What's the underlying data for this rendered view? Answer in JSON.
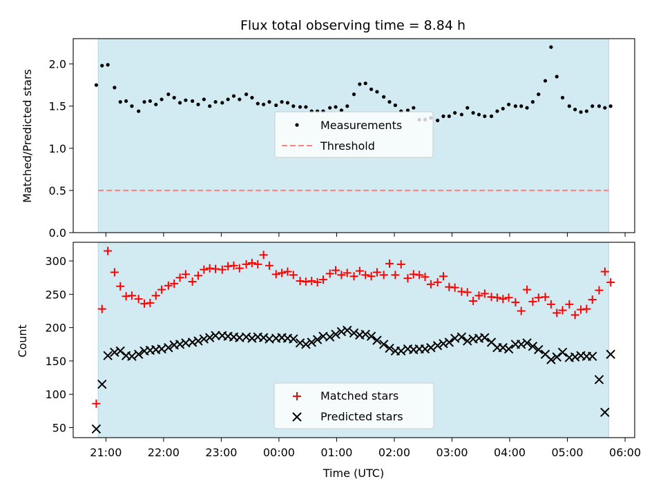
{
  "title": "Flux total observing time = 8.84 h",
  "colors": {
    "observing_band": "#add8e6",
    "threshold": "#ff7f7f",
    "matched": "#ff0000",
    "predicted": "#000000",
    "measurement": "#000000"
  },
  "chart_data": [
    {
      "type": "scatter",
      "ylabel": "Matched/Predicted stars",
      "ylim": [
        0,
        2.3
      ],
      "y_ticks": [
        0.0,
        0.5,
        1.0,
        1.5,
        2.0
      ],
      "y_tick_labels": [
        "0.0",
        "0.5",
        "1.0",
        "1.5",
        "2.0"
      ],
      "x_shared": "bottom",
      "grid": false,
      "legend_position": "center",
      "observing_window": [
        "20:52",
        "05:43"
      ],
      "series": [
        {
          "name": "Measurements",
          "marker": "dot",
          "x": [
            "20:50",
            "20:56",
            "21:02",
            "21:09",
            "21:15",
            "21:21",
            "21:27",
            "21:34",
            "21:40",
            "21:46",
            "21:52",
            "21:58",
            "22:05",
            "22:11",
            "22:17",
            "22:23",
            "22:30",
            "22:36",
            "22:42",
            "22:48",
            "22:54",
            "23:01",
            "23:07",
            "23:13",
            "23:19",
            "23:26",
            "23:32",
            "23:38",
            "23:44",
            "23:50",
            "23:57",
            "00:03",
            "00:09",
            "00:15",
            "00:22",
            "00:28",
            "00:34",
            "00:40",
            "00:46",
            "00:53",
            "00:59",
            "01:05",
            "01:11",
            "01:18",
            "01:24",
            "01:30",
            "01:36",
            "01:42",
            "01:49",
            "01:55",
            "02:01",
            "02:07",
            "02:14",
            "02:20",
            "02:26",
            "02:32",
            "02:38",
            "02:45",
            "02:51",
            "02:57",
            "03:03",
            "03:10",
            "03:16",
            "03:22",
            "03:28",
            "03:34",
            "03:41",
            "03:47",
            "03:53",
            "03:59",
            "04:06",
            "04:12",
            "04:18",
            "04:24",
            "04:30",
            "04:37",
            "04:43",
            "04:49",
            "04:55",
            "05:02",
            "05:08",
            "05:14",
            "05:20",
            "05:26",
            "05:33",
            "05:39",
            "05:45"
          ],
          "y": [
            1.75,
            1.98,
            1.99,
            1.72,
            1.55,
            1.56,
            1.5,
            1.44,
            1.55,
            1.56,
            1.52,
            1.58,
            1.64,
            1.6,
            1.54,
            1.57,
            1.56,
            1.52,
            1.58,
            1.5,
            1.55,
            1.54,
            1.58,
            1.62,
            1.58,
            1.64,
            1.6,
            1.53,
            1.52,
            1.55,
            1.51,
            1.55,
            1.54,
            1.5,
            1.49,
            1.49,
            1.44,
            1.44,
            1.44,
            1.48,
            1.49,
            1.45,
            1.5,
            1.64,
            1.76,
            1.77,
            1.7,
            1.67,
            1.61,
            1.55,
            1.51,
            1.44,
            1.45,
            1.48,
            1.34,
            1.34,
            1.36,
            1.33,
            1.38,
            1.38,
            1.42,
            1.4,
            1.48,
            1.42,
            1.4,
            1.38,
            1.38,
            1.44,
            1.47,
            1.52,
            1.5,
            1.5,
            1.48,
            1.55,
            1.64,
            1.8,
            2.2,
            1.85,
            1.6,
            1.5,
            1.46,
            1.43,
            1.44,
            1.5,
            1.5,
            1.48,
            1.5
          ]
        },
        {
          "name": "Threshold",
          "line_style": "dashed",
          "x": [
            "20:52",
            "05:43"
          ],
          "y": [
            0.5,
            0.5
          ]
        }
      ]
    },
    {
      "type": "scatter",
      "xlabel": "Time (UTC)",
      "ylabel": "Count",
      "ylim": [
        35,
        328
      ],
      "y_ticks": [
        50,
        100,
        150,
        200,
        250,
        300
      ],
      "y_tick_labels": [
        "50",
        "100",
        "150",
        "200",
        "250",
        "300"
      ],
      "x_ticks": [
        "21:00",
        "22:00",
        "23:00",
        "00:00",
        "01:00",
        "02:00",
        "03:00",
        "04:00",
        "05:00",
        "06:00"
      ],
      "x_tick_labels": [
        "21:00",
        "22:00",
        "23:00",
        "00:00",
        "01:00",
        "02:00",
        "03:00",
        "04:00",
        "05:00",
        "06:00"
      ],
      "xlim": [
        "20:26",
        "06:10"
      ],
      "grid": false,
      "legend_position": "lower center",
      "series": [
        {
          "name": "Matched stars",
          "marker": "plus",
          "x": [
            "20:50",
            "20:56",
            "21:02",
            "21:09",
            "21:15",
            "21:21",
            "21:27",
            "21:34",
            "21:40",
            "21:46",
            "21:52",
            "21:58",
            "22:05",
            "22:11",
            "22:17",
            "22:23",
            "22:30",
            "22:36",
            "22:42",
            "22:48",
            "22:54",
            "23:01",
            "23:07",
            "23:13",
            "23:19",
            "23:26",
            "23:32",
            "23:38",
            "23:44",
            "23:50",
            "23:57",
            "00:03",
            "00:09",
            "00:15",
            "00:22",
            "00:28",
            "00:34",
            "00:40",
            "00:46",
            "00:53",
            "00:59",
            "01:05",
            "01:11",
            "01:18",
            "01:24",
            "01:30",
            "01:36",
            "01:42",
            "01:49",
            "01:55",
            "02:01",
            "02:07",
            "02:14",
            "02:20",
            "02:26",
            "02:32",
            "02:38",
            "02:45",
            "02:51",
            "02:57",
            "03:03",
            "03:10",
            "03:16",
            "03:22",
            "03:28",
            "03:34",
            "03:41",
            "03:47",
            "03:53",
            "03:59",
            "04:06",
            "04:12",
            "04:18",
            "04:24",
            "04:30",
            "04:37",
            "04:43",
            "04:49",
            "04:55",
            "05:02",
            "05:08",
            "05:14",
            "05:20",
            "05:26",
            "05:33",
            "05:39",
            "05:45"
          ],
          "y": [
            86,
            228,
            315,
            283,
            262,
            247,
            248,
            243,
            236,
            237,
            248,
            257,
            263,
            266,
            275,
            280,
            269,
            278,
            287,
            289,
            288,
            287,
            292,
            293,
            289,
            295,
            297,
            295,
            309,
            293,
            280,
            282,
            284,
            279,
            270,
            269,
            270,
            268,
            272,
            281,
            286,
            279,
            282,
            277,
            285,
            279,
            277,
            283,
            279,
            296,
            279,
            295,
            274,
            280,
            279,
            276,
            265,
            268,
            277,
            261,
            260,
            254,
            253,
            240,
            248,
            251,
            246,
            245,
            243,
            245,
            238,
            225,
            257,
            239,
            245,
            246,
            235,
            222,
            226,
            235,
            219,
            227,
            228,
            242,
            256,
            284,
            268
          ]
        },
        {
          "name": "Predicted stars",
          "marker": "x",
          "x": [
            "20:50",
            "20:56",
            "21:02",
            "21:09",
            "21:15",
            "21:21",
            "21:27",
            "21:34",
            "21:40",
            "21:46",
            "21:52",
            "21:58",
            "22:05",
            "22:11",
            "22:17",
            "22:23",
            "22:30",
            "22:36",
            "22:42",
            "22:48",
            "22:54",
            "23:01",
            "23:07",
            "23:13",
            "23:19",
            "23:26",
            "23:32",
            "23:38",
            "23:44",
            "23:50",
            "23:57",
            "00:03",
            "00:09",
            "00:15",
            "00:22",
            "00:28",
            "00:34",
            "00:40",
            "00:46",
            "00:53",
            "00:59",
            "01:05",
            "01:11",
            "01:18",
            "01:24",
            "01:30",
            "01:36",
            "01:42",
            "01:49",
            "01:55",
            "02:01",
            "02:07",
            "02:14",
            "02:20",
            "02:26",
            "02:32",
            "02:38",
            "02:45",
            "02:51",
            "02:57",
            "03:03",
            "03:10",
            "03:16",
            "03:22",
            "03:28",
            "03:34",
            "03:41",
            "03:47",
            "03:53",
            "03:59",
            "04:06",
            "04:12",
            "04:18",
            "04:24",
            "04:30",
            "04:37",
            "04:43",
            "04:49",
            "04:55",
            "05:02",
            "05:08",
            "05:14",
            "05:20",
            "05:26",
            "05:33",
            "05:39",
            "05:45"
          ],
          "y": [
            48,
            115,
            158,
            163,
            165,
            158,
            157,
            160,
            165,
            166,
            167,
            168,
            170,
            174,
            175,
            177,
            178,
            180,
            183,
            185,
            188,
            188,
            187,
            186,
            185,
            186,
            184,
            186,
            185,
            183,
            184,
            185,
            184,
            183,
            177,
            175,
            178,
            182,
            187,
            186,
            190,
            194,
            196,
            192,
            189,
            190,
            187,
            181,
            175,
            169,
            165,
            165,
            168,
            167,
            168,
            168,
            170,
            173,
            176,
            178,
            184,
            186,
            180,
            183,
            184,
            185,
            178,
            170,
            170,
            168,
            175,
            175,
            177,
            172,
            167,
            160,
            152,
            156,
            163,
            155,
            156,
            158,
            157,
            157,
            122,
            73,
            160
          ]
        }
      ]
    }
  ]
}
